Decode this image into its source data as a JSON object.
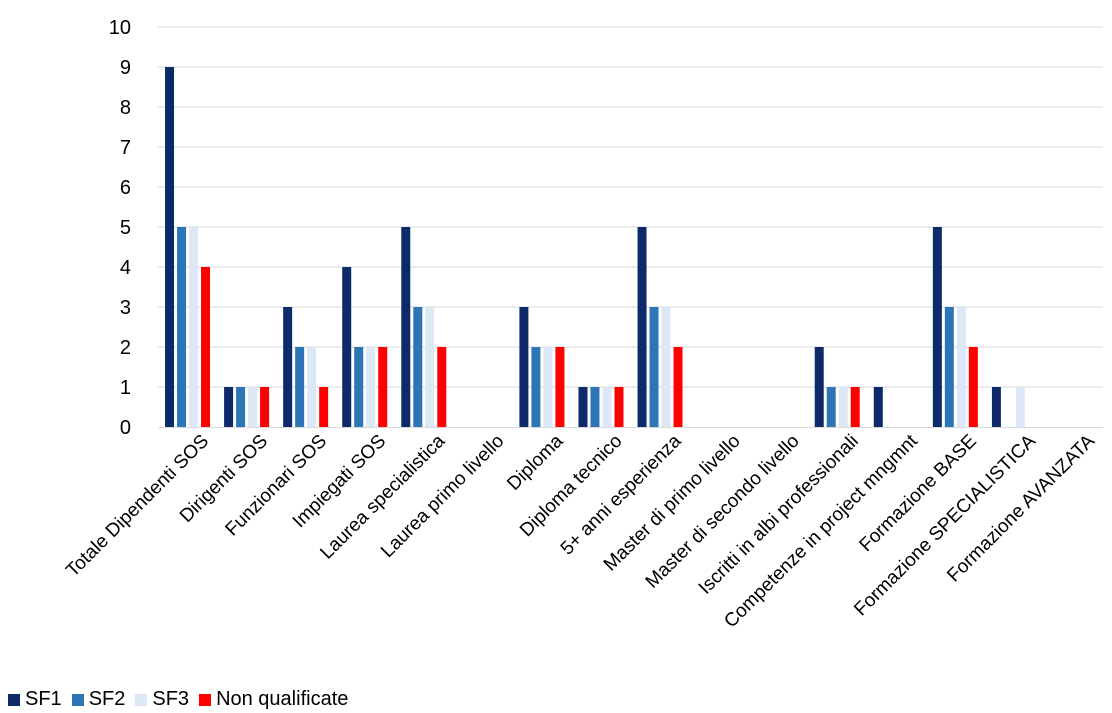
{
  "chart_data": {
    "type": "bar",
    "title": "",
    "xlabel": "",
    "ylabel": "",
    "ylim": [
      0,
      10
    ],
    "yticks": [
      "0",
      "1",
      "2",
      "3",
      "4",
      "5",
      "6",
      "7",
      "8",
      "9",
      "10"
    ],
    "grid": true,
    "legend_position": "bottom-left",
    "categories": [
      "Totale Dipendenti SOS",
      "Dirigenti SOS",
      "Funzionari SOS",
      "Impiegati SOS",
      "Laurea specialistica",
      "Laurea primo livello",
      "Diploma",
      "Diploma tecnico",
      "5+ anni esperienza",
      "Master di primo livello",
      "Master di secondo livello",
      "Iscritti in albi professionali",
      "Competenze in project mngmnt",
      "Formazione BASE",
      "Formazione SPECIALISTICA",
      "Formazione AVANZATA"
    ],
    "series": [
      {
        "name": "SF1",
        "color": "#0d2a6b",
        "values": [
          9,
          1,
          3,
          4,
          5,
          0,
          3,
          1,
          5,
          0,
          0,
          2,
          1,
          5,
          1,
          0
        ]
      },
      {
        "name": "SF2",
        "color": "#2e75b6",
        "values": [
          5,
          1,
          2,
          2,
          3,
          0,
          2,
          1,
          3,
          0,
          0,
          1,
          0,
          3,
          0,
          0
        ]
      },
      {
        "name": "SF3",
        "color": "#dde8f7",
        "values": [
          5,
          1,
          2,
          2,
          3,
          0,
          2,
          1,
          3,
          0,
          0,
          1,
          0,
          3,
          1,
          0
        ]
      },
      {
        "name": "Non qualificate",
        "color": "#ff0000",
        "values": [
          4,
          1,
          1,
          2,
          2,
          0,
          2,
          1,
          2,
          0,
          0,
          1,
          0,
          2,
          0,
          0
        ]
      }
    ]
  }
}
